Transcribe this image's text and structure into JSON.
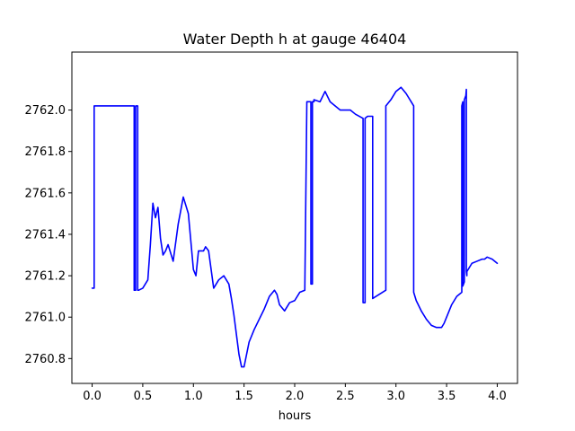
{
  "chart_data": {
    "type": "line",
    "title": "Water Depth h at gauge 46404",
    "xlabel": "hours",
    "ylabel": "",
    "xlim": [
      -0.2,
      4.2
    ],
    "ylim": [
      2760.68,
      2762.28
    ],
    "xticks": [
      0.0,
      0.5,
      1.0,
      1.5,
      2.0,
      2.5,
      3.0,
      3.5,
      4.0
    ],
    "xtick_labels": [
      "0.0",
      "0.5",
      "1.0",
      "1.5",
      "2.0",
      "2.5",
      "3.0",
      "3.5",
      "4.0"
    ],
    "yticks": [
      2760.8,
      2761.0,
      2761.2,
      2761.4,
      2761.6,
      2761.8,
      2762.0
    ],
    "ytick_labels": [
      "2760.8",
      "2761.0",
      "2761.2",
      "2761.4",
      "2761.6",
      "2761.8",
      "2762.0"
    ],
    "grid": false,
    "series": [
      {
        "color": "#0000ff",
        "x": [
          0.0,
          0.02,
          0.02,
          0.05,
          0.4,
          0.415,
          0.415,
          0.43,
          0.43,
          0.44,
          0.45,
          0.45,
          0.46,
          0.5,
          0.55,
          0.575,
          0.6,
          0.625,
          0.65,
          0.675,
          0.7,
          0.725,
          0.75,
          0.8,
          0.85,
          0.9,
          0.95,
          1.0,
          1.025,
          1.05,
          1.1,
          1.12,
          1.15,
          1.2,
          1.225,
          1.25,
          1.3,
          1.35,
          1.375,
          1.4,
          1.45,
          1.475,
          1.5,
          1.55,
          1.6,
          1.7,
          1.75,
          1.8,
          1.825,
          1.85,
          1.9,
          1.95,
          2.0,
          2.05,
          2.1,
          2.12,
          2.12,
          2.16,
          2.16,
          2.175,
          2.175,
          2.19,
          2.19,
          2.25,
          2.3,
          2.35,
          2.4,
          2.45,
          2.5,
          2.55,
          2.6,
          2.675,
          2.675,
          2.695,
          2.695,
          2.72,
          2.77,
          2.77,
          2.9,
          2.9,
          2.95,
          3.0,
          3.05,
          3.1,
          3.15,
          3.175,
          3.175,
          3.2,
          3.25,
          3.3,
          3.35,
          3.4,
          3.45,
          3.475,
          3.5,
          3.55,
          3.6,
          3.65,
          3.65,
          3.66,
          3.66,
          3.675,
          3.675,
          3.69,
          3.695,
          3.695,
          3.7,
          3.7,
          3.75,
          3.8,
          3.85,
          3.875,
          3.9,
          3.95,
          4.0
        ],
        "y": [
          2761.14,
          2761.14,
          2762.02,
          2762.02,
          2762.02,
          2762.02,
          2761.13,
          2761.13,
          2762.02,
          2762.02,
          2762.02,
          2761.13,
          2761.13,
          2761.14,
          2761.18,
          2761.35,
          2761.55,
          2761.48,
          2761.53,
          2761.38,
          2761.3,
          2761.32,
          2761.35,
          2761.27,
          2761.45,
          2761.58,
          2761.5,
          2761.23,
          2761.2,
          2761.32,
          2761.32,
          2761.34,
          2761.32,
          2761.14,
          2761.16,
          2761.18,
          2761.2,
          2761.16,
          2761.09,
          2761.01,
          2760.82,
          2760.76,
          2760.76,
          2760.88,
          2760.94,
          2761.04,
          2761.1,
          2761.13,
          2761.11,
          2761.06,
          2761.03,
          2761.07,
          2761.08,
          2761.12,
          2761.13,
          2762.04,
          2762.04,
          2762.04,
          2761.16,
          2761.16,
          2762.04,
          2762.04,
          2762.05,
          2762.04,
          2762.09,
          2762.04,
          2762.02,
          2762.0,
          2762.0,
          2762.0,
          2761.98,
          2761.96,
          2761.07,
          2761.07,
          2761.96,
          2761.97,
          2761.97,
          2761.09,
          2761.13,
          2762.02,
          2762.05,
          2762.09,
          2762.11,
          2762.08,
          2762.04,
          2762.02,
          2761.12,
          2761.08,
          2761.03,
          2760.99,
          2760.96,
          2760.95,
          2760.95,
          2760.97,
          2761.0,
          2761.06,
          2761.1,
          2761.12,
          2762.02,
          2762.04,
          2761.15,
          2761.17,
          2762.05,
          2762.07,
          2762.1,
          2761.22,
          2761.2,
          2761.22,
          2761.26,
          2761.27,
          2761.28,
          2761.28,
          2761.29,
          2761.28,
          2761.26
        ]
      }
    ]
  }
}
